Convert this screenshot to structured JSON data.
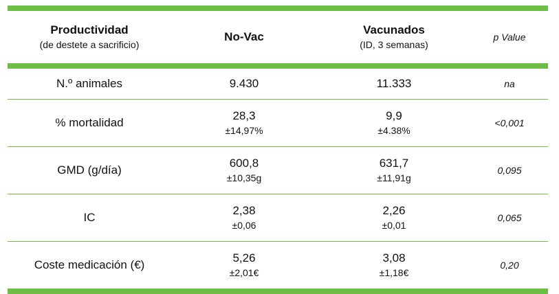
{
  "header": {
    "col1_title": "Productividad",
    "col1_sub": "(de destete a sacrificio)",
    "col2_title": "No-Vac",
    "col3_title": "Vacunados",
    "col3_sub": "(ID, 3 semanas)",
    "col4_title": "p Value"
  },
  "rows": [
    {
      "label": "N.º animales",
      "novac": "9.430",
      "novac_sd": "",
      "vac": "11.333",
      "vac_sd": "",
      "p": "na"
    },
    {
      "label": "% mortalidad",
      "novac": "28,3",
      "novac_sd": "±14,97%",
      "vac": "9,9",
      "vac_sd": "±4.38%",
      "p": "<0,001"
    },
    {
      "label": "GMD (g/día)",
      "novac": "600,8",
      "novac_sd": "±10,35g",
      "vac": "631,7",
      "vac_sd": "±11,91g",
      "p": "0,095"
    },
    {
      "label": "IC",
      "novac": "2,38",
      "novac_sd": "±0,06",
      "vac": "2,26",
      "vac_sd": "±0,01",
      "p": "0,065"
    },
    {
      "label": "Coste medicación (€)",
      "novac": "5,26",
      "novac_sd": "±2,01€",
      "vac": "3,08",
      "vac_sd": "±1,18€",
      "p": "0,20"
    }
  ],
  "colors": {
    "accent": "#6cbf44"
  }
}
